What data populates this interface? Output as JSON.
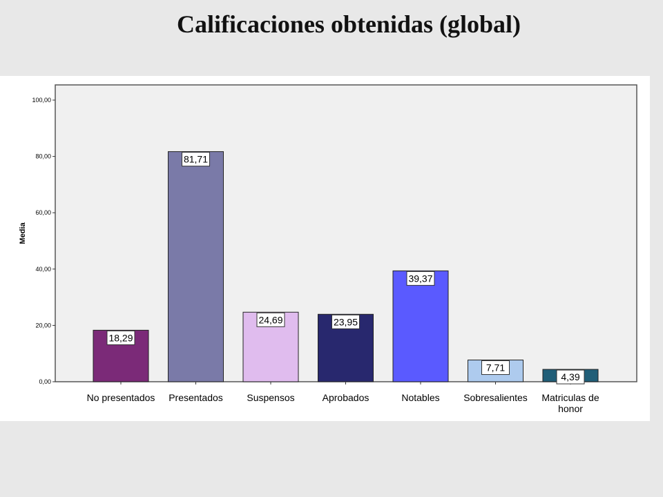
{
  "chart_data": {
    "type": "bar",
    "title": "Calificaciones obtenidas (global)",
    "ylabel": "Media",
    "xlabel": "",
    "ylim": [
      0,
      100
    ],
    "yticks": [
      "0,00",
      "20,00",
      "40,00",
      "60,00",
      "80,00",
      "100,00"
    ],
    "ytick_values": [
      0,
      20,
      40,
      60,
      80,
      100
    ],
    "categories": [
      [
        "No presentados"
      ],
      [
        "Presentados"
      ],
      [
        "Suspensos"
      ],
      [
        "Aprobados"
      ],
      [
        "Notables"
      ],
      [
        "Sobresalientes"
      ],
      [
        "Matriculas de",
        "honor"
      ]
    ],
    "values": [
      18.29,
      81.71,
      24.69,
      23.95,
      39.37,
      7.71,
      4.39
    ],
    "value_labels": [
      "18,29",
      "81,71",
      "24,69",
      "23,95",
      "39,37",
      "7,71",
      "4,39"
    ],
    "colors": [
      "#7b2a78",
      "#7a7aa8",
      "#e0bcee",
      "#28286e",
      "#5a5aff",
      "#aecbee",
      "#205e78"
    ],
    "grid": false,
    "legend": "none"
  }
}
